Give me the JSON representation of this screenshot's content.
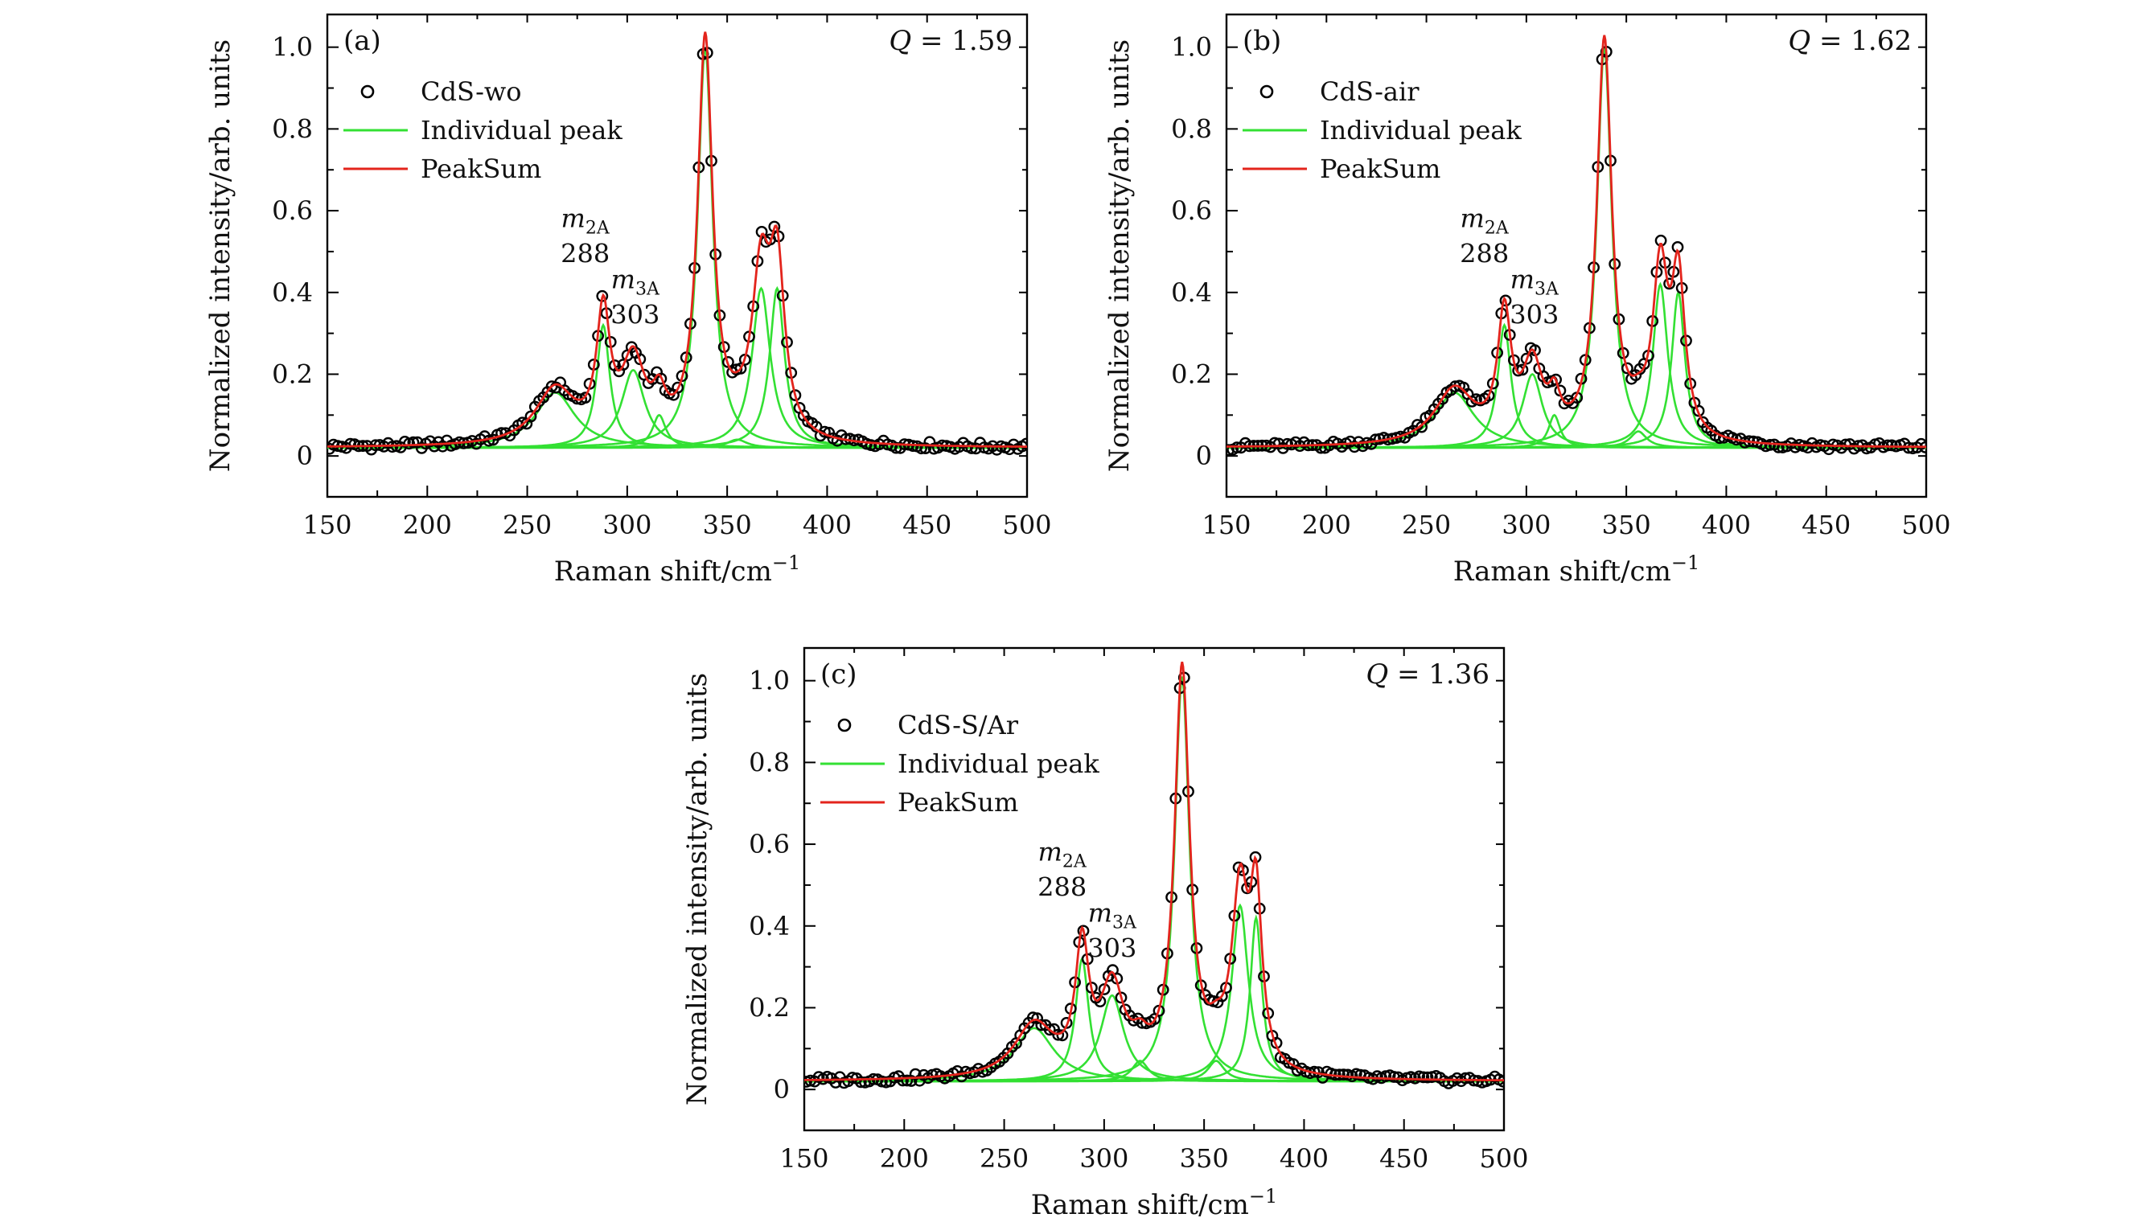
{
  "chart_data": [
    {
      "type": "line",
      "panel": "(a)",
      "q_label": "Q = 1.59",
      "q_var": "Q",
      "q_value": "= 1.59",
      "xlabel": "Raman shift/cm",
      "xlabel_sup": "−1",
      "ylabel": "Normalized intensity/arb. units",
      "xlim": [
        150,
        500
      ],
      "ylim": [
        -0.1,
        1.08
      ],
      "xticks": [
        "150",
        "200",
        "250",
        "300",
        "350",
        "400",
        "450",
        "500"
      ],
      "yticks": [
        "0",
        "0.2",
        "0.4",
        "0.6",
        "0.8",
        "1.0"
      ],
      "legend": [
        "CdS-wo",
        "Individual peak",
        "PeakSum"
      ],
      "baseline": 0.02,
      "peaks": [
        {
          "center": 264,
          "height": 0.135,
          "width": 12
        },
        {
          "center": 288,
          "height": 0.3,
          "width": 4
        },
        {
          "center": 303,
          "height": 0.19,
          "width": 7
        },
        {
          "center": 316,
          "height": 0.08,
          "width": 4
        },
        {
          "center": 339,
          "height": 0.98,
          "width": 4.5
        },
        {
          "center": 355,
          "height": 0.02,
          "width": 6
        },
        {
          "center": 367,
          "height": 0.39,
          "width": 5.5
        },
        {
          "center": 375,
          "height": 0.39,
          "width": 4.5
        }
      ],
      "annotations": [
        {
          "var": "m",
          "sub": "2A",
          "value": "288"
        },
        {
          "var": "m",
          "sub": "3A",
          "value": "303"
        }
      ]
    },
    {
      "type": "line",
      "panel": "(b)",
      "q_label": "Q = 1.62",
      "q_var": "Q",
      "q_value": "= 1.62",
      "xlabel": "Raman shift/cm",
      "xlabel_sup": "−1",
      "ylabel": "Normalized intensity/arb. units",
      "xlim": [
        150,
        500
      ],
      "ylim": [
        -0.1,
        1.08
      ],
      "xticks": [
        "150",
        "200",
        "250",
        "300",
        "350",
        "400",
        "450",
        "500"
      ],
      "yticks": [
        "0",
        "0.2",
        "0.4",
        "0.6",
        "0.8",
        "1.0"
      ],
      "legend": [
        "CdS-air",
        "Individual peak",
        "PeakSum"
      ],
      "baseline": 0.02,
      "peaks": [
        {
          "center": 264,
          "height": 0.135,
          "width": 12
        },
        {
          "center": 289,
          "height": 0.3,
          "width": 4
        },
        {
          "center": 303,
          "height": 0.18,
          "width": 6
        },
        {
          "center": 314,
          "height": 0.08,
          "width": 3.5
        },
        {
          "center": 339,
          "height": 0.98,
          "width": 4.5
        },
        {
          "center": 356,
          "height": 0.04,
          "width": 5
        },
        {
          "center": 367,
          "height": 0.4,
          "width": 4.5
        },
        {
          "center": 376,
          "height": 0.38,
          "width": 4
        }
      ],
      "annotations": [
        {
          "var": "m",
          "sub": "2A",
          "value": "288"
        },
        {
          "var": "m",
          "sub": "3A",
          "value": "303"
        }
      ]
    },
    {
      "type": "line",
      "panel": "(c)",
      "q_label": "Q = 1.36",
      "q_var": "Q",
      "q_value": "= 1.36",
      "xlabel": "Raman shift/cm",
      "xlabel_sup": "−1",
      "ylabel": "Normalized intensity/arb. units",
      "xlim": [
        150,
        500
      ],
      "ylim": [
        -0.1,
        1.08
      ],
      "xticks": [
        "150",
        "200",
        "250",
        "300",
        "350",
        "400",
        "450",
        "500"
      ],
      "yticks": [
        "0",
        "0.2",
        "0.4",
        "0.6",
        "0.8",
        "1.0"
      ],
      "legend": [
        "CdS-S/Ar",
        "Individual peak",
        "PeakSum"
      ],
      "baseline": 0.02,
      "peaks": [
        {
          "center": 265,
          "height": 0.13,
          "width": 12
        },
        {
          "center": 289,
          "height": 0.3,
          "width": 4
        },
        {
          "center": 304,
          "height": 0.21,
          "width": 7
        },
        {
          "center": 318,
          "height": 0.05,
          "width": 5
        },
        {
          "center": 339,
          "height": 0.99,
          "width": 4.5
        },
        {
          "center": 356,
          "height": 0.05,
          "width": 5
        },
        {
          "center": 368,
          "height": 0.43,
          "width": 5
        },
        {
          "center": 376,
          "height": 0.4,
          "width": 3.5
        }
      ],
      "annotations": [
        {
          "var": "m",
          "sub": "2A",
          "value": "288"
        },
        {
          "var": "m",
          "sub": "3A",
          "value": "303"
        }
      ]
    }
  ],
  "colors": {
    "axis": "#000000",
    "data_marker": "#000000",
    "individual_peak": "#33e033",
    "peaksum": "#e3241c"
  }
}
